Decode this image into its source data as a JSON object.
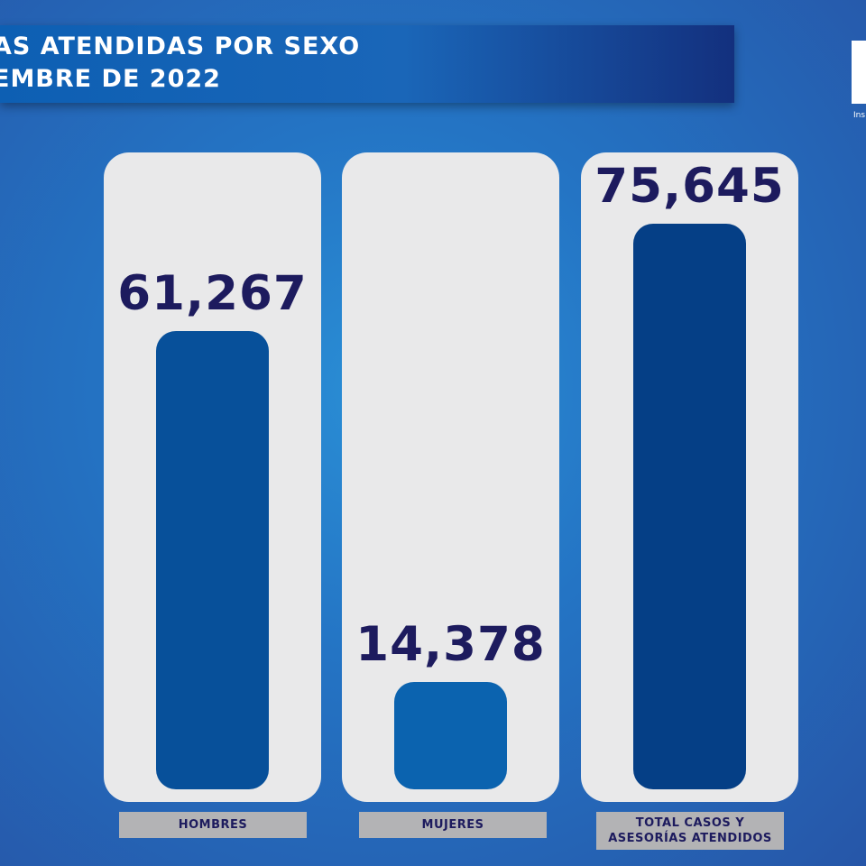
{
  "header": {
    "title_line1": "AS ATENDIDAS POR SEXO",
    "title_line2": "EMBRE DE 2022",
    "logo_text": "Ins"
  },
  "chart_data": {
    "type": "bar",
    "categories": [
      "HOMBRES",
      "MUJERES",
      "TOTAL CASOS Y\nASESORÍAS ATENDIDOS"
    ],
    "values": [
      61267,
      14378,
      75645
    ],
    "value_labels": [
      "61,267",
      "14,378",
      "75,645"
    ],
    "colors": [
      "#07509a",
      "#0b63af",
      "#053f86"
    ],
    "ylim": [
      0,
      75645
    ],
    "title": "",
    "xlabel": "",
    "ylabel": ""
  }
}
